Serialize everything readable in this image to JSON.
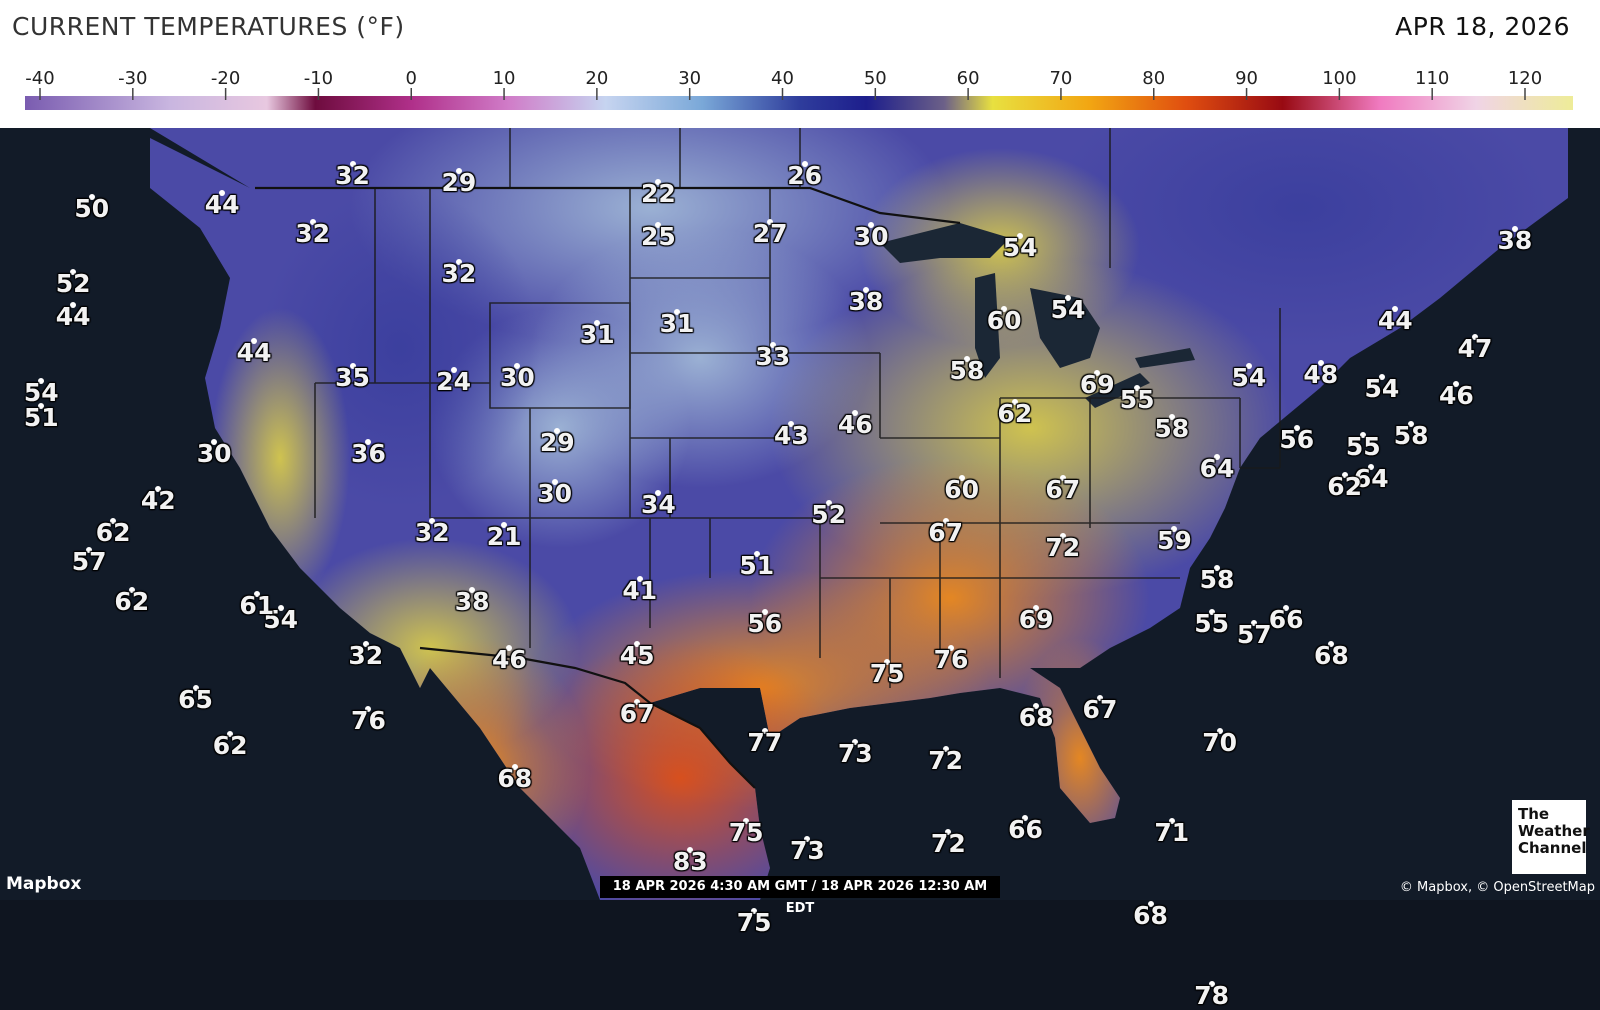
{
  "header": {
    "title": "CURRENT TEMPERATURES (°F)",
    "date": "APR 18, 2026"
  },
  "scale": {
    "ticks": [
      "-40",
      "-30",
      "-20",
      "-10",
      "0",
      "10",
      "20",
      "30",
      "40",
      "50",
      "60",
      "70",
      "80",
      "90",
      "100",
      "110",
      "120"
    ],
    "min": -40,
    "max": 120,
    "gradient_stops": [
      {
        "t": -40,
        "color": "#7a5cb0"
      },
      {
        "t": -25,
        "color": "#c9b6e0"
      },
      {
        "t": -15,
        "color": "#e8c8e0"
      },
      {
        "t": -10,
        "color": "#6e0c3e"
      },
      {
        "t": 0,
        "color": "#b0308a"
      },
      {
        "t": 10,
        "color": "#d07cc8"
      },
      {
        "t": 20,
        "color": "#c6d4f0"
      },
      {
        "t": 30,
        "color": "#7aa8d8"
      },
      {
        "t": 40,
        "color": "#2f3d9c"
      },
      {
        "t": 47,
        "color": "#1d1e8c"
      },
      {
        "t": 55,
        "color": "#6c6088"
      },
      {
        "t": 60,
        "color": "#e8e040"
      },
      {
        "t": 70,
        "color": "#f2a612"
      },
      {
        "t": 80,
        "color": "#e04e10"
      },
      {
        "t": 90,
        "color": "#980a12"
      },
      {
        "t": 100,
        "color": "#f07ac0"
      },
      {
        "t": 110,
        "color": "#f0d4e6"
      },
      {
        "t": 120,
        "color": "#eeec98"
      }
    ]
  },
  "map": {
    "colors": {
      "ocean": "#121b28",
      "great_lakes": "#1a2633",
      "borders": "#1a1a1a",
      "cold": "#3b3f9e",
      "cool": "#8aa4c8",
      "mild": "#d9c84a",
      "warm": "#ea8c1a",
      "hot": "#d9531a"
    },
    "readings": [
      {
        "v": "50",
        "x": -122.3,
        "y": 47.6
      },
      {
        "v": "44",
        "x": -117.4,
        "y": 47.7
      },
      {
        "v": "32",
        "x": -112.5,
        "y": 48.5
      },
      {
        "v": "29",
        "x": -108.5,
        "y": 48.3
      },
      {
        "v": "22",
        "x": -101.0,
        "y": 48.0
      },
      {
        "v": "26",
        "x": -95.5,
        "y": 48.5
      },
      {
        "v": "32",
        "x": -114.0,
        "y": 46.9
      },
      {
        "v": "25",
        "x": -101.0,
        "y": 46.8
      },
      {
        "v": "27",
        "x": -96.8,
        "y": 46.9
      },
      {
        "v": "30",
        "x": -93.0,
        "y": 46.8
      },
      {
        "v": "54",
        "x": -87.4,
        "y": 46.5
      },
      {
        "v": "38",
        "x": -68.8,
        "y": 46.7
      },
      {
        "v": "52",
        "x": -123.0,
        "y": 45.5
      },
      {
        "v": "32",
        "x": -108.5,
        "y": 45.8
      },
      {
        "v": "38",
        "x": -93.2,
        "y": 45.0
      },
      {
        "v": "54",
        "x": -85.6,
        "y": 44.8
      },
      {
        "v": "44",
        "x": -123.0,
        "y": 44.6
      },
      {
        "v": "44",
        "x": -116.2,
        "y": 43.6
      },
      {
        "v": "31",
        "x": -103.3,
        "y": 44.1
      },
      {
        "v": "31",
        "x": -100.3,
        "y": 44.4
      },
      {
        "v": "60",
        "x": -88.0,
        "y": 44.5
      },
      {
        "v": "44",
        "x": -73.3,
        "y": 44.5
      },
      {
        "v": "47",
        "x": -70.3,
        "y": 43.7
      },
      {
        "v": "54",
        "x": -124.2,
        "y": 42.5
      },
      {
        "v": "35",
        "x": -112.5,
        "y": 42.9
      },
      {
        "v": "24",
        "x": -108.7,
        "y": 42.8
      },
      {
        "v": "30",
        "x": -106.3,
        "y": 42.9
      },
      {
        "v": "33",
        "x": -96.7,
        "y": 43.5
      },
      {
        "v": "58",
        "x": -89.4,
        "y": 43.1
      },
      {
        "v": "69",
        "x": -84.5,
        "y": 42.7
      },
      {
        "v": "55",
        "x": -83.0,
        "y": 42.3
      },
      {
        "v": "54",
        "x": -78.8,
        "y": 42.9
      },
      {
        "v": "48",
        "x": -76.1,
        "y": 43.0
      },
      {
        "v": "54",
        "x": -73.8,
        "y": 42.6
      },
      {
        "v": "46",
        "x": -71.0,
        "y": 42.4
      },
      {
        "v": "51",
        "x": -124.2,
        "y": 41.8
      },
      {
        "v": "30",
        "x": -117.7,
        "y": 40.8
      },
      {
        "v": "36",
        "x": -111.9,
        "y": 40.8
      },
      {
        "v": "29",
        "x": -104.8,
        "y": 41.1
      },
      {
        "v": "43",
        "x": -96.0,
        "y": 41.3
      },
      {
        "v": "46",
        "x": -93.6,
        "y": 41.6
      },
      {
        "v": "62",
        "x": -87.6,
        "y": 41.9
      },
      {
        "v": "58",
        "x": -81.7,
        "y": 41.5
      },
      {
        "v": "56",
        "x": -77.0,
        "y": 41.2
      },
      {
        "v": "55",
        "x": -74.5,
        "y": 41.0
      },
      {
        "v": "58",
        "x": -72.7,
        "y": 41.3
      },
      {
        "v": "30",
        "x": -104.9,
        "y": 39.7
      },
      {
        "v": "34",
        "x": -101.0,
        "y": 39.4
      },
      {
        "v": "64",
        "x": -80.0,
        "y": 40.4
      },
      {
        "v": "64",
        "x": -74.2,
        "y": 40.1
      },
      {
        "v": "60",
        "x": -89.6,
        "y": 39.8
      },
      {
        "v": "67",
        "x": -85.8,
        "y": 39.8
      },
      {
        "v": "62",
        "x": -75.2,
        "y": 39.9
      },
      {
        "v": "62",
        "x": -121.5,
        "y": 38.6
      },
      {
        "v": "57",
        "x": -122.4,
        "y": 37.8
      },
      {
        "v": "42",
        "x": -119.8,
        "y": 39.5
      },
      {
        "v": "32",
        "x": -109.5,
        "y": 38.6
      },
      {
        "v": "21",
        "x": -106.8,
        "y": 38.5
      },
      {
        "v": "52",
        "x": -94.6,
        "y": 39.1
      },
      {
        "v": "67",
        "x": -90.2,
        "y": 38.6
      },
      {
        "v": "72",
        "x": -85.8,
        "y": 38.2
      },
      {
        "v": "59",
        "x": -81.6,
        "y": 38.4
      },
      {
        "v": "41",
        "x": -101.7,
        "y": 37.0
      },
      {
        "v": "51",
        "x": -97.3,
        "y": 37.7
      },
      {
        "v": "58",
        "x": -80.0,
        "y": 37.3
      },
      {
        "v": "62",
        "x": -120.8,
        "y": 36.7
      },
      {
        "v": "54",
        "x": -115.2,
        "y": 36.2
      },
      {
        "v": "61",
        "x": -116.1,
        "y": 36.6
      },
      {
        "v": "38",
        "x": -108.0,
        "y": 36.7
      },
      {
        "v": "69",
        "x": -86.8,
        "y": 36.2
      },
      {
        "v": "55",
        "x": -80.2,
        "y": 36.1
      },
      {
        "v": "57",
        "x": -78.6,
        "y": 35.8
      },
      {
        "v": "66",
        "x": -77.4,
        "y": 36.2
      },
      {
        "v": "56",
        "x": -97.0,
        "y": 36.1
      },
      {
        "v": "68",
        "x": -75.7,
        "y": 35.2
      },
      {
        "v": "32",
        "x": -112.0,
        "y": 35.2
      },
      {
        "v": "46",
        "x": -106.6,
        "y": 35.1
      },
      {
        "v": "45",
        "x": -101.8,
        "y": 35.2
      },
      {
        "v": "75",
        "x": -92.4,
        "y": 34.7
      },
      {
        "v": "76",
        "x": -90.0,
        "y": 35.1
      },
      {
        "v": "65",
        "x": -118.4,
        "y": 34.0
      },
      {
        "v": "76",
        "x": -111.9,
        "y": 33.4
      },
      {
        "v": "67",
        "x": -101.8,
        "y": 33.6
      },
      {
        "v": "68",
        "x": -86.8,
        "y": 33.5
      },
      {
        "v": "67",
        "x": -84.4,
        "y": 33.7
      },
      {
        "v": "77",
        "x": -97.0,
        "y": 32.8
      },
      {
        "v": "73",
        "x": -93.6,
        "y": 32.5
      },
      {
        "v": "72",
        "x": -90.2,
        "y": 32.3
      },
      {
        "v": "70",
        "x": -79.9,
        "y": 32.8
      },
      {
        "v": "62",
        "x": -117.1,
        "y": 32.7
      },
      {
        "v": "68",
        "x": -106.4,
        "y": 31.8
      },
      {
        "v": "75",
        "x": -97.7,
        "y": 30.3
      },
      {
        "v": "73",
        "x": -95.4,
        "y": 29.8
      },
      {
        "v": "72",
        "x": -90.1,
        "y": 30.0
      },
      {
        "v": "66",
        "x": -87.2,
        "y": 30.4
      },
      {
        "v": "71",
        "x": -81.7,
        "y": 30.3
      },
      {
        "v": "83",
        "x": -99.8,
        "y": 29.5
      },
      {
        "v": "68",
        "x": -82.5,
        "y": 28.0
      },
      {
        "v": "75",
        "x": -97.4,
        "y": 27.8
      },
      {
        "v": "78",
        "x": -80.2,
        "y": 25.8
      }
    ]
  },
  "footer": {
    "brand": "Mapbox",
    "timestamp": "18 APR 2026 4:30 AM GMT / 18 APR 2026 12:30 AM EDT",
    "attribution": "© Mapbox, © OpenStreetMap",
    "logo_lines": [
      "The",
      "Weather",
      "Channel"
    ]
  }
}
